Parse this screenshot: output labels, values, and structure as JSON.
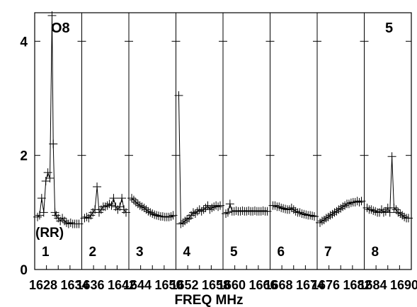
{
  "chart_data": {
    "type": "line",
    "xlabel": "FREQ MHz",
    "ylim": [
      0,
      4.5
    ],
    "yticks": [
      0,
      2,
      4
    ],
    "source_label": "O8",
    "polarization_label": "(RR)",
    "corner_label": "5",
    "marker": "plus",
    "x_tick_labels": [
      "1628",
      "1634",
      "1636",
      "1642",
      "1644",
      "1650",
      "1652",
      "1658",
      "1660",
      "1666",
      "1668",
      "1674",
      "1676",
      "1682",
      "1684",
      "1690"
    ],
    "panels": [
      {
        "label": "1",
        "x": [
          0,
          0.05,
          0.1,
          0.15,
          0.2,
          0.25,
          0.3,
          0.35,
          0.38,
          0.42,
          0.45,
          0.5,
          0.55,
          0.6,
          0.65,
          0.7,
          0.75,
          0.8,
          0.85,
          0.9,
          0.95,
          1.0
        ],
        "y": [
          0.92,
          0.95,
          1.25,
          1.0,
          1.55,
          1.7,
          1.6,
          4.45,
          2.2,
          1.0,
          0.95,
          0.9,
          0.85,
          0.9,
          0.85,
          0.82,
          0.8,
          0.82,
          0.8,
          0.8,
          0.8,
          0.8
        ]
      },
      {
        "label": "2",
        "x": [
          0,
          0.05,
          0.1,
          0.15,
          0.2,
          0.25,
          0.3,
          0.35,
          0.4,
          0.45,
          0.5,
          0.55,
          0.6,
          0.65,
          0.7,
          0.75,
          0.8,
          0.85,
          0.9,
          0.95,
          1.0
        ],
        "y": [
          0.9,
          0.92,
          0.9,
          0.95,
          1.0,
          1.05,
          1.45,
          1.0,
          1.05,
          1.1,
          1.1,
          1.12,
          1.15,
          1.12,
          1.25,
          1.1,
          1.05,
          1.1,
          1.25,
          1.05,
          1.0
        ]
      },
      {
        "label": "3",
        "x": [
          0,
          0.05,
          0.1,
          0.15,
          0.2,
          0.25,
          0.3,
          0.35,
          0.4,
          0.45,
          0.5,
          0.55,
          0.6,
          0.65,
          0.7,
          0.75,
          0.8,
          0.85,
          0.9,
          0.95,
          1.0
        ],
        "y": [
          1.25,
          1.22,
          1.18,
          1.15,
          1.12,
          1.1,
          1.08,
          1.05,
          1.02,
          1.0,
          0.98,
          0.96,
          0.95,
          0.94,
          0.93,
          0.93,
          0.92,
          0.92,
          0.92,
          0.93,
          0.95
        ]
      },
      {
        "label": "4",
        "x": [
          0,
          0.05,
          0.1,
          0.15,
          0.2,
          0.25,
          0.3,
          0.35,
          0.4,
          0.45,
          0.5,
          0.55,
          0.6,
          0.65,
          0.7,
          0.75,
          0.8,
          0.85,
          0.9,
          0.95,
          1.0
        ],
        "y": [
          3.05,
          0.8,
          0.82,
          0.85,
          0.88,
          0.9,
          0.95,
          1.0,
          0.98,
          1.02,
          1.05,
          1.02,
          1.05,
          1.08,
          1.12,
          1.05,
          1.08,
          1.1,
          1.12,
          1.1,
          1.12
        ]
      },
      {
        "label": "5",
        "x": [
          0,
          0.05,
          0.1,
          0.15,
          0.2,
          0.25,
          0.3,
          0.35,
          0.4,
          0.45,
          0.5,
          0.55,
          0.6,
          0.65,
          0.7,
          0.75,
          0.8,
          0.85,
          0.9,
          0.95,
          1.0
        ],
        "y": [
          0.98,
          1.0,
          1.15,
          1.02,
          1.02,
          1.03,
          1.02,
          1.02,
          1.03,
          1.02,
          1.02,
          1.03,
          1.02,
          1.02,
          1.03,
          1.02,
          1.02,
          1.02,
          1.03,
          1.02,
          1.02
        ]
      },
      {
        "label": "6",
        "x": [
          0,
          0.05,
          0.1,
          0.15,
          0.2,
          0.25,
          0.3,
          0.35,
          0.4,
          0.45,
          0.5,
          0.55,
          0.6,
          0.65,
          0.7,
          0.75,
          0.8,
          0.85,
          0.9,
          0.95,
          1.0
        ],
        "y": [
          1.12,
          1.12,
          1.1,
          1.1,
          1.08,
          1.07,
          1.06,
          1.05,
          1.05,
          1.08,
          1.05,
          1.02,
          1.0,
          1.0,
          0.98,
          0.97,
          0.96,
          0.95,
          0.95,
          0.94,
          0.93
        ]
      },
      {
        "label": "7",
        "x": [
          0,
          0.05,
          0.1,
          0.15,
          0.2,
          0.25,
          0.3,
          0.35,
          0.4,
          0.45,
          0.5,
          0.55,
          0.6,
          0.65,
          0.7,
          0.75,
          0.8,
          0.85,
          0.9,
          0.95,
          1.0
        ],
        "y": [
          0.82,
          0.85,
          0.87,
          0.9,
          0.92,
          0.95,
          0.97,
          1.0,
          1.02,
          1.05,
          1.07,
          1.1,
          1.12,
          1.15,
          1.15,
          1.17,
          1.18,
          1.18,
          1.2,
          1.18,
          1.2
        ]
      },
      {
        "label": "8",
        "x": [
          0,
          0.05,
          0.1,
          0.15,
          0.2,
          0.25,
          0.3,
          0.35,
          0.4,
          0.45,
          0.5,
          0.55,
          0.6,
          0.65,
          0.7,
          0.75,
          0.8,
          0.85,
          0.9,
          0.95,
          1.0
        ],
        "y": [
          1.08,
          1.05,
          1.05,
          1.03,
          1.02,
          1.0,
          1.0,
          1.05,
          1.0,
          1.02,
          1.08,
          1.0,
          1.98,
          1.08,
          1.05,
          1.0,
          0.98,
          0.95,
          0.92,
          0.9,
          0.9
        ]
      }
    ]
  }
}
